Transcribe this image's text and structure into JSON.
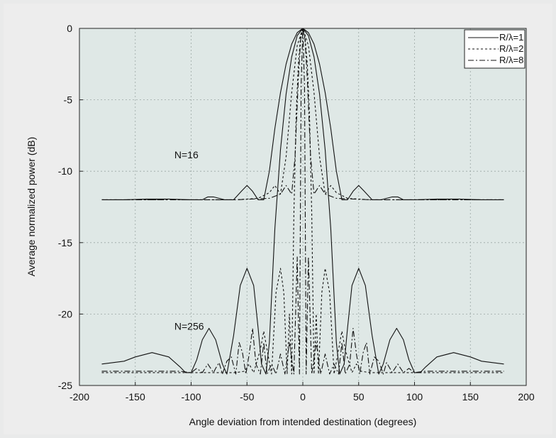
{
  "chart_data": {
    "type": "line",
    "title": "",
    "xlabel": "Angle deviation from intended destination (degrees)",
    "ylabel": "Average normalized power (dB)",
    "xlim": [
      -200,
      200
    ],
    "ylim": [
      -25,
      0
    ],
    "xticks": [
      -200,
      -150,
      -100,
      -50,
      0,
      50,
      100,
      150,
      200
    ],
    "yticks": [
      0,
      -5,
      -10,
      -15,
      -20,
      -25
    ],
    "x_tick_labels": [
      "-200",
      "-150",
      "-100",
      "-50",
      "0",
      "50",
      "100",
      "150",
      "200"
    ],
    "y_tick_labels": [
      "0",
      "-5",
      "-10",
      "-15",
      "-20",
      "-25"
    ],
    "grid": true,
    "legend_position": "top-right",
    "legend": [
      {
        "label": "R/λ=1",
        "dash": "solid"
      },
      {
        "label": "R/λ=2",
        "dash": "dashed"
      },
      {
        "label": "R/λ=8",
        "dash": "dashdot"
      }
    ],
    "annotations": [
      {
        "text": "N=16",
        "x": -115,
        "y": -9.1
      },
      {
        "text": "N=256",
        "x": -115,
        "y": -21.1
      }
    ],
    "series": [
      {
        "name": "R/λ=1",
        "group": "N=16",
        "dash": "solid",
        "x": [
          -180,
          -160,
          -140,
          -120,
          -100,
          -90,
          -85,
          -80,
          -70,
          -62,
          -55,
          -50,
          -45,
          -40,
          -35,
          -30,
          -25,
          -20,
          -15,
          -10,
          -5,
          0,
          5,
          10,
          15,
          20,
          25,
          30,
          35,
          40,
          45,
          50,
          55,
          62,
          70,
          80,
          85,
          90,
          100,
          120,
          140,
          160,
          180
        ],
        "y": [
          -12.0,
          -12.0,
          -11.95,
          -11.95,
          -12.0,
          -12.0,
          -11.8,
          -11.8,
          -12.0,
          -12.0,
          -11.4,
          -11.0,
          -11.4,
          -12.0,
          -12.0,
          -10.0,
          -7.0,
          -4.5,
          -2.5,
          -1.1,
          -0.3,
          0.0,
          -0.3,
          -1.1,
          -2.5,
          -4.5,
          -7.0,
          -10.0,
          -12.0,
          -12.0,
          -11.4,
          -11.0,
          -11.4,
          -12.0,
          -12.0,
          -11.8,
          -11.8,
          -12.0,
          -12.0,
          -11.95,
          -11.95,
          -12.0,
          -12.0
        ]
      },
      {
        "name": "R/λ=2",
        "group": "N=16",
        "dash": "dashed",
        "x": [
          -180,
          -100,
          -60,
          -40,
          -30,
          -25,
          -20,
          -15,
          -10,
          -5,
          0,
          5,
          10,
          15,
          20,
          25,
          30,
          40,
          60,
          100,
          180
        ],
        "y": [
          -12.0,
          -12.0,
          -12.0,
          -11.9,
          -11.5,
          -11.0,
          -11.6,
          -9.0,
          -4.5,
          -1.2,
          0.0,
          -1.2,
          -4.5,
          -9.0,
          -11.6,
          -11.0,
          -11.5,
          -11.9,
          -12.0,
          -12.0,
          -12.0
        ]
      },
      {
        "name": "R/λ=8",
        "group": "N=16",
        "dash": "dashdot",
        "x": [
          -180,
          -60,
          -30,
          -20,
          -15,
          -10,
          -7,
          -4,
          -2,
          0,
          2,
          4,
          7,
          10,
          15,
          20,
          30,
          60,
          180
        ],
        "y": [
          -12.0,
          -12.0,
          -11.9,
          -11.6,
          -11.0,
          -11.6,
          -9.0,
          -3.5,
          -0.8,
          0.0,
          -0.8,
          -3.5,
          -9.0,
          -11.6,
          -11.0,
          -11.6,
          -11.9,
          -12.0,
          -12.0
        ]
      },
      {
        "name": "R/λ=1",
        "group": "N=256",
        "dash": "solid",
        "x": [
          -180,
          -160,
          -150,
          -135,
          -120,
          -110,
          -105,
          -100,
          -95,
          -90,
          -84,
          -78,
          -72,
          -68,
          -62,
          -56,
          -50,
          -44,
          -40,
          -37,
          -33,
          -30,
          -25,
          -20,
          -15,
          -10,
          -5,
          0,
          5,
          10,
          15,
          20,
          25,
          30,
          33,
          37,
          40,
          44,
          50,
          56,
          62,
          68,
          72,
          78,
          84,
          90,
          95,
          100,
          105,
          110,
          120,
          135,
          150,
          160,
          180
        ],
        "y": [
          -23.5,
          -23.3,
          -23.0,
          -22.7,
          -23.0,
          -23.7,
          -24.1,
          -24.1,
          -23.2,
          -21.8,
          -21.0,
          -21.8,
          -23.5,
          -24.2,
          -21.5,
          -18.0,
          -16.8,
          -18.0,
          -21.0,
          -23.5,
          -24.2,
          -22.0,
          -14.0,
          -8.5,
          -4.6,
          -2.0,
          -0.5,
          0.0,
          -0.5,
          -2.0,
          -4.6,
          -8.5,
          -14.0,
          -22.0,
          -24.2,
          -23.5,
          -21.0,
          -18.0,
          -16.8,
          -18.0,
          -21.5,
          -24.2,
          -23.5,
          -21.8,
          -21.0,
          -21.8,
          -23.2,
          -24.1,
          -24.1,
          -23.7,
          -23.0,
          -22.7,
          -23.0,
          -23.3,
          -23.5
        ]
      },
      {
        "name": "R/λ=2",
        "group": "N=256",
        "dash": "dashed",
        "x": [
          -180,
          -100,
          -60,
          -52,
          -48,
          -44,
          -38,
          -35,
          -32,
          -28,
          -24,
          -20,
          -17,
          -14,
          -12,
          -10,
          -8,
          -6,
          -4,
          -2,
          0,
          2,
          4,
          6,
          8,
          10,
          12,
          14,
          17,
          20,
          24,
          28,
          32,
          35,
          38,
          44,
          48,
          52,
          60,
          100,
          180
        ],
        "y": [
          -24.1,
          -24.1,
          -24.1,
          -24.0,
          -23.5,
          -24.1,
          -22.5,
          -21.2,
          -22.5,
          -24.2,
          -18.5,
          -16.8,
          -18.5,
          -24.2,
          -20.0,
          -24.2,
          -13.0,
          -6.0,
          -2.5,
          -0.6,
          0.0,
          -0.6,
          -2.5,
          -6.0,
          -13.0,
          -24.2,
          -20.0,
          -24.2,
          -18.5,
          -16.8,
          -18.5,
          -24.2,
          -22.5,
          -21.2,
          -22.5,
          -24.1,
          -23.5,
          -24.0,
          -24.1,
          -24.1,
          -24.1
        ]
      },
      {
        "name": "R/λ=8",
        "group": "N=256",
        "dash": "dashdot",
        "x": [
          -180,
          -110,
          -100,
          -95,
          -90,
          -85,
          -80,
          -78,
          -75,
          -72,
          -68,
          -64,
          -60,
          -57,
          -54,
          -51,
          -48,
          -45,
          -42,
          -38,
          -35,
          -32,
          -28,
          -24,
          -20,
          -16,
          -12,
          -8,
          -5,
          -3,
          -1.5,
          0,
          1.5,
          3,
          5,
          8,
          12,
          16,
          20,
          24,
          28,
          32,
          35,
          38,
          42,
          45,
          48,
          51,
          54,
          57,
          60,
          64,
          68,
          72,
          75,
          78,
          80,
          85,
          90,
          95,
          100,
          110,
          180
        ],
        "y": [
          -24.0,
          -24.0,
          -24.1,
          -23.8,
          -24.1,
          -23.5,
          -24.1,
          -23.8,
          -23.4,
          -24.2,
          -23.3,
          -23.0,
          -24.2,
          -22.0,
          -22.7,
          -24.2,
          -22.8,
          -21.0,
          -23.5,
          -24.2,
          -22.0,
          -24.2,
          -23.5,
          -24.2,
          -22.8,
          -24.2,
          -22.0,
          -24.2,
          -16.0,
          -24.2,
          -4.0,
          0.0,
          -4.0,
          -24.2,
          -16.0,
          -24.2,
          -22.0,
          -24.2,
          -22.8,
          -24.2,
          -23.5,
          -24.2,
          -22.0,
          -24.2,
          -23.5,
          -21.0,
          -22.8,
          -24.2,
          -22.7,
          -22.0,
          -24.2,
          -23.0,
          -23.3,
          -24.2,
          -23.4,
          -23.8,
          -24.1,
          -23.5,
          -24.1,
          -23.8,
          -24.1,
          -24.0,
          -24.0
        ]
      }
    ]
  }
}
